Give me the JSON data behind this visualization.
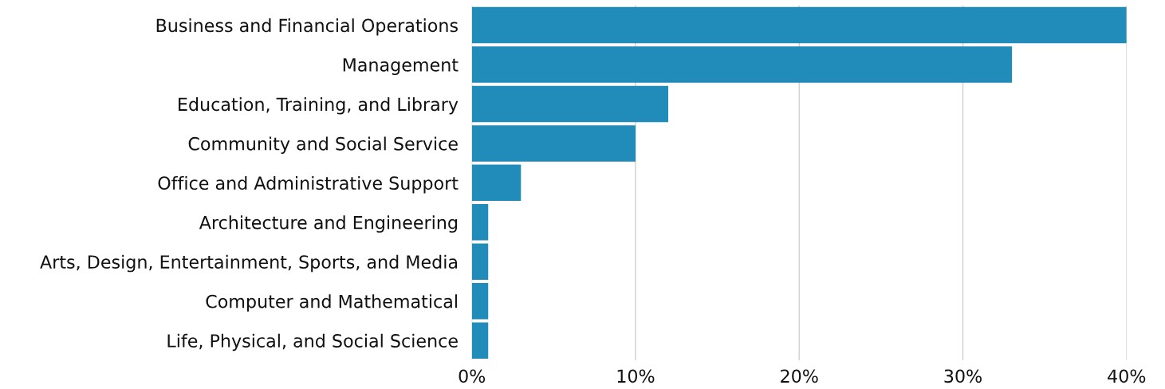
{
  "chart_data": {
    "type": "bar",
    "orientation": "horizontal",
    "categories": [
      "Business and Financial Operations",
      "Management",
      "Education, Training, and Library",
      "Community and Social Service",
      "Office and Administrative Support",
      "Architecture and Engineering",
      "Arts, Design, Entertainment, Sports, and Media",
      "Computer and Mathematical",
      "Life, Physical, and Social Science"
    ],
    "values": [
      40,
      33,
      12,
      10,
      3,
      1,
      1,
      1,
      1
    ],
    "color": "#218bba",
    "xlim": [
      0,
      40
    ],
    "xticks": [
      {
        "value": 0,
        "label": "0%"
      },
      {
        "value": 10,
        "label": "10%"
      },
      {
        "value": 20,
        "label": "20%"
      },
      {
        "value": 30,
        "label": "30%"
      },
      {
        "value": 40,
        "label": "40%"
      }
    ],
    "grid": "x"
  }
}
